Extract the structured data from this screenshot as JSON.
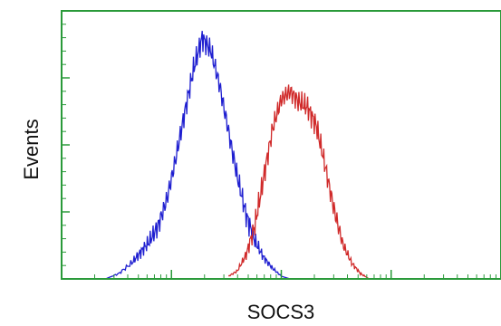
{
  "chart_data": {
    "type": "line",
    "xlabel": "SOCS3",
    "ylabel": "Events",
    "title": "",
    "x_scale": "log",
    "xlim": [
      0,
      100
    ],
    "ylim": [
      0,
      100
    ],
    "grid": false,
    "legend": "none",
    "colors": {
      "frame": "#2a9a3a",
      "ticks": "#2a9a3a",
      "control": "#1f1fd0",
      "sample": "#d02a2a"
    },
    "series": [
      {
        "color": "#1f1fd0",
        "x": [
          10,
          13,
          16,
          18,
          20,
          22,
          24,
          26,
          28,
          30,
          32,
          34,
          36,
          38,
          40,
          42,
          44,
          46,
          48,
          50,
          52
        ],
        "values": [
          0,
          2,
          6,
          10,
          14,
          20,
          30,
          45,
          62,
          78,
          90,
          85,
          72,
          55,
          38,
          24,
          14,
          8,
          4,
          1,
          0
        ]
      },
      {
        "color": "#d02a2a",
        "x": [
          38,
          40,
          42,
          44,
          46,
          48,
          50,
          52,
          54,
          56,
          58,
          60,
          62,
          64,
          66,
          68,
          70
        ],
        "values": [
          1,
          3,
          9,
          20,
          38,
          56,
          67,
          70,
          66,
          64,
          57,
          42,
          26,
          13,
          6,
          2,
          0
        ]
      }
    ]
  }
}
